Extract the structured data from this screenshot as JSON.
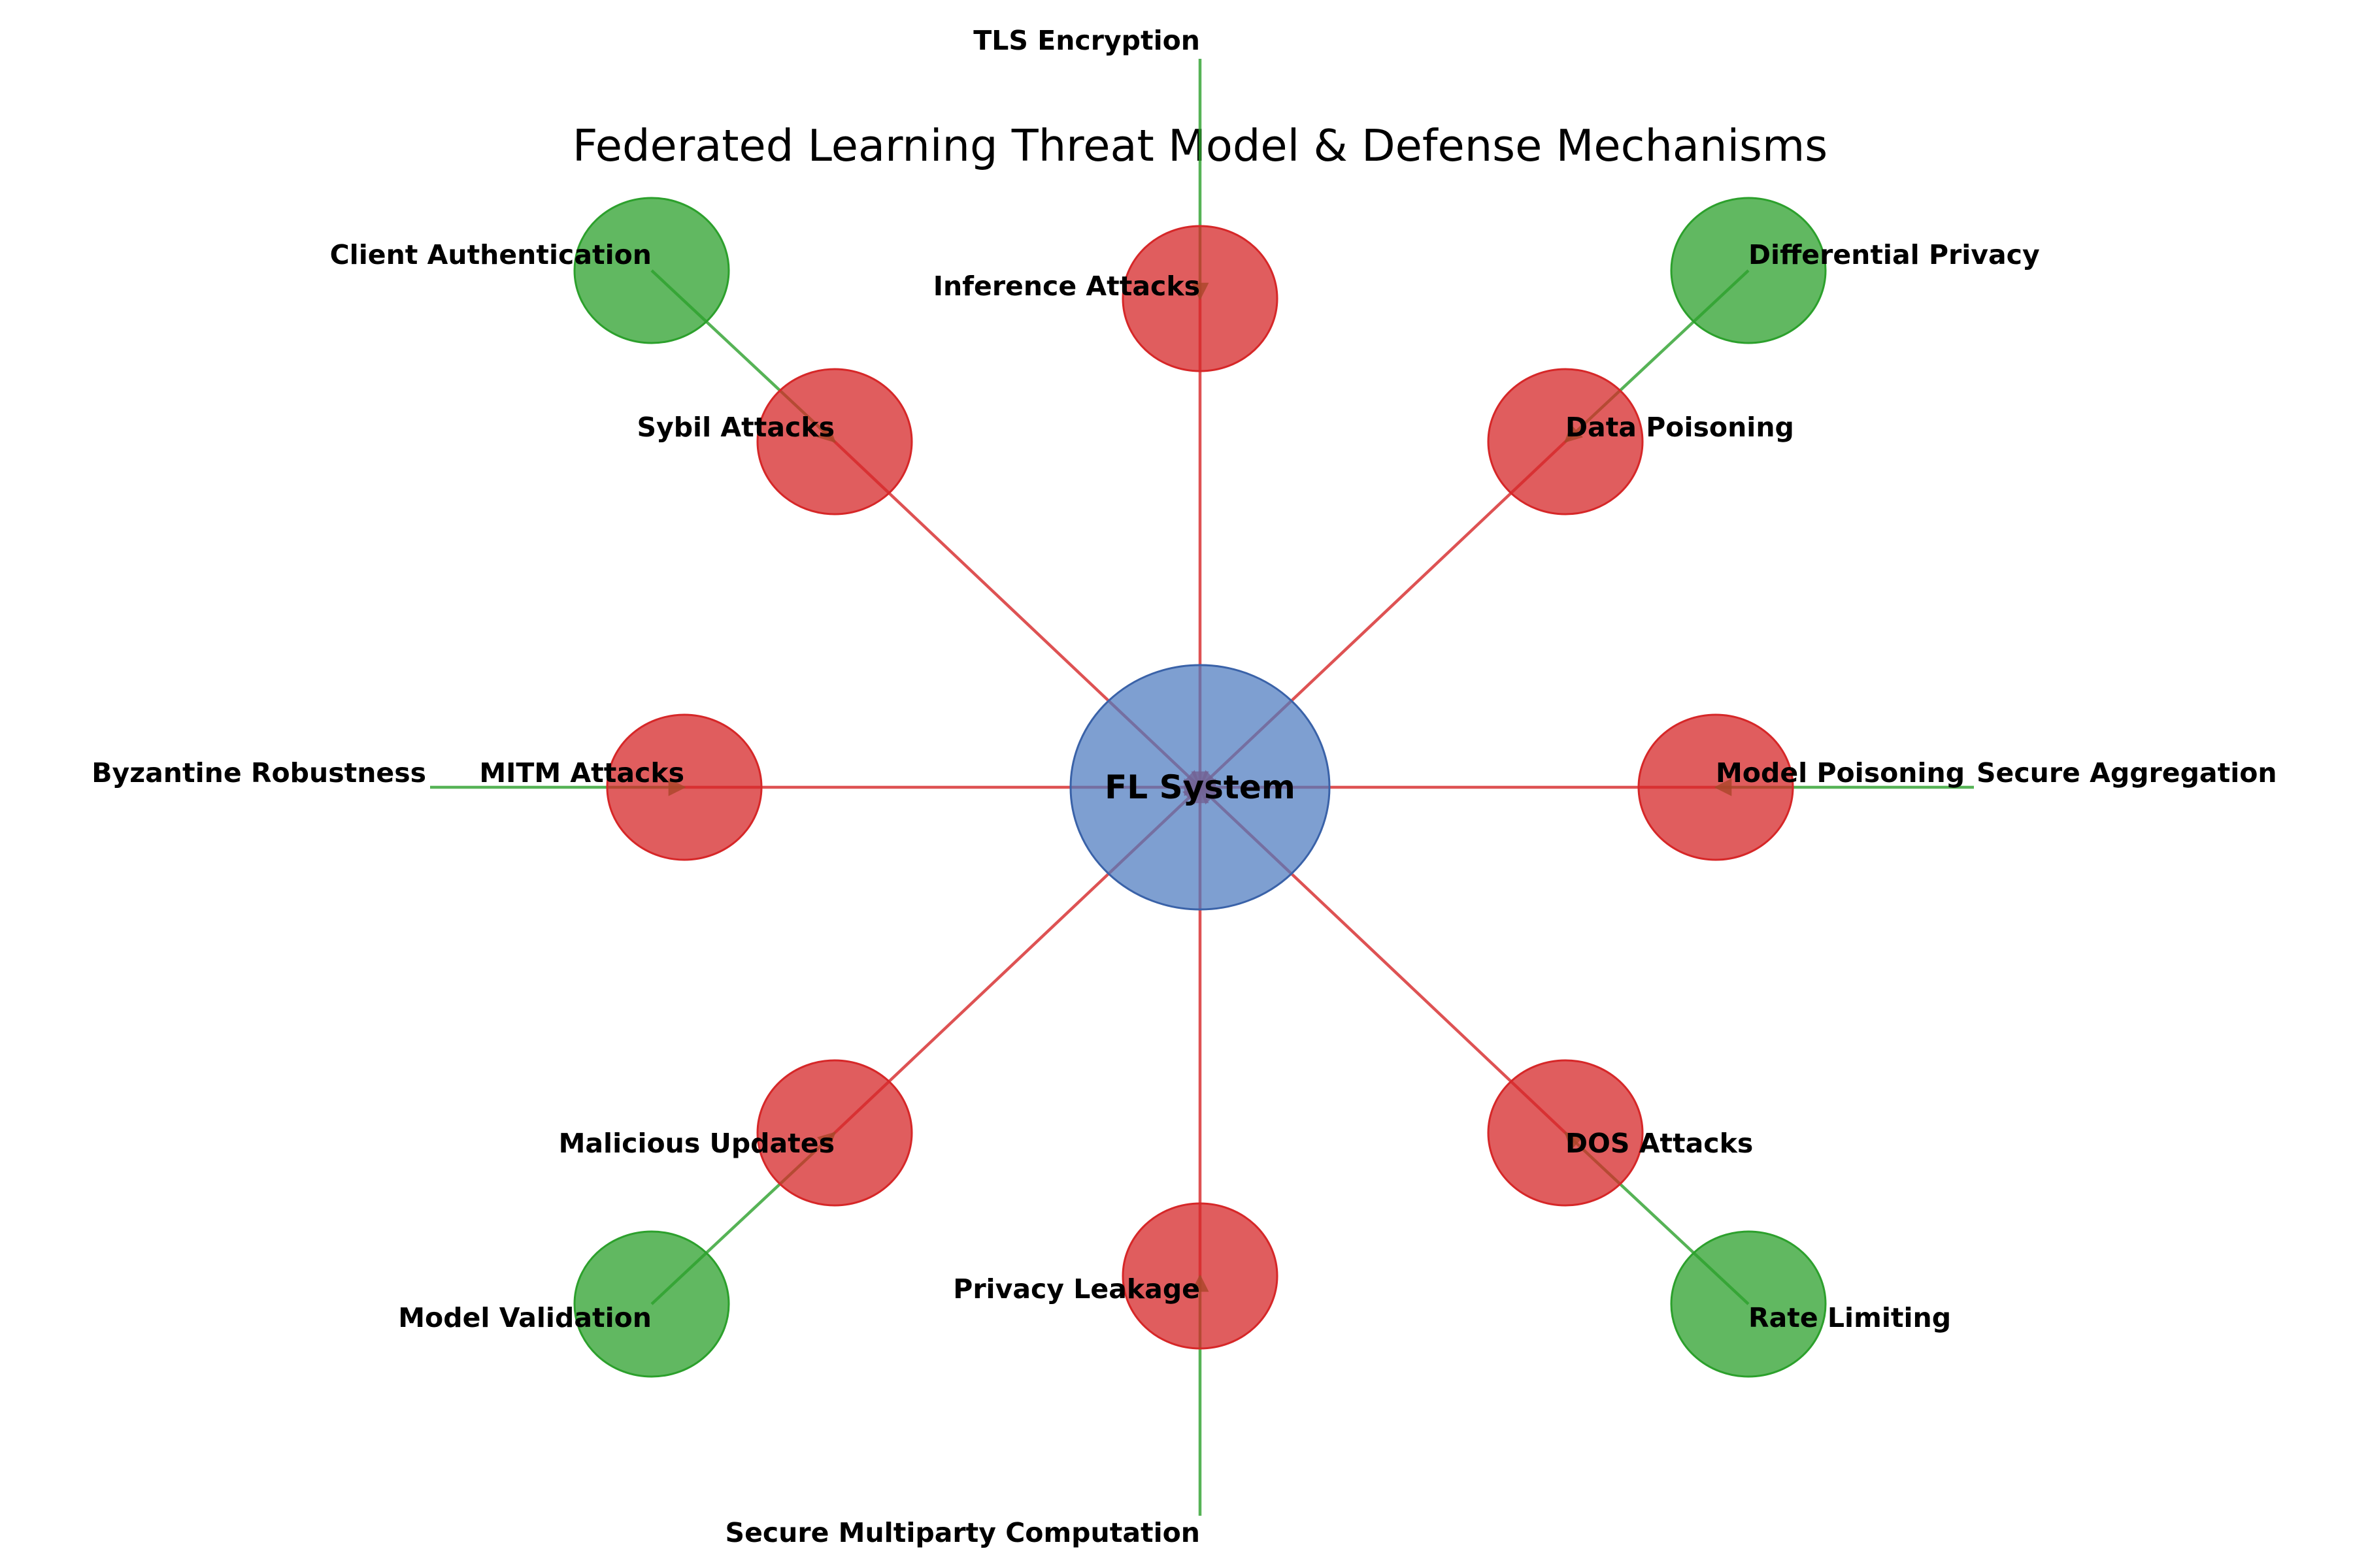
{
  "title": "Federated Learning Threat Model & Defense Mechanisms",
  "colors": {
    "center": "#4c7abf",
    "threat": "#d62728",
    "defense": "#2ca02c"
  },
  "center": {
    "label": "FL System"
  },
  "threats": [
    {
      "id": "inference",
      "label": "Inference Attacks"
    },
    {
      "id": "data-poisoning",
      "label": "Data Poisoning"
    },
    {
      "id": "model-poisoning",
      "label": "Model Poisoning"
    },
    {
      "id": "dos",
      "label": "DOS Attacks"
    },
    {
      "id": "privacy-leakage",
      "label": "Privacy Leakage"
    },
    {
      "id": "malicious-updates",
      "label": "Malicious Updates"
    },
    {
      "id": "mitm",
      "label": "MITM Attacks"
    },
    {
      "id": "sybil",
      "label": "Sybil Attacks"
    }
  ],
  "defenses": [
    {
      "id": "tls",
      "label": "TLS Encryption",
      "target": "inference",
      "node": false
    },
    {
      "id": "dp",
      "label": "Differential Privacy",
      "target": "data-poisoning",
      "node": true
    },
    {
      "id": "secagg",
      "label": "Secure Aggregation",
      "target": "model-poisoning",
      "node": false
    },
    {
      "id": "ratelimit",
      "label": "Rate Limiting",
      "target": "dos",
      "node": true
    },
    {
      "id": "smpc",
      "label": "Secure Multiparty Computation",
      "target": "privacy-leakage",
      "node": false
    },
    {
      "id": "validation",
      "label": "Model Validation",
      "target": "malicious-updates",
      "node": true
    },
    {
      "id": "byzantine",
      "label": "Byzantine Robustness",
      "target": "mitm",
      "node": false
    },
    {
      "id": "clientauth",
      "label": "Client Authentication",
      "target": "sybil",
      "node": true
    }
  ]
}
